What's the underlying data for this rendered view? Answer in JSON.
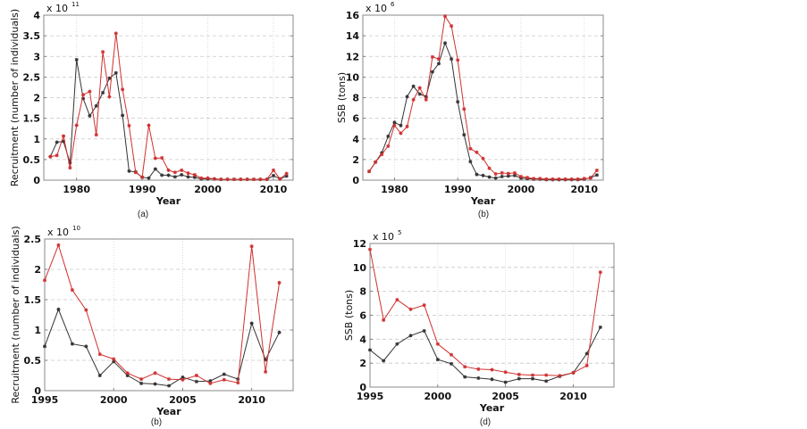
{
  "chart_data": [
    {
      "id": "a",
      "type": "line",
      "caption": "(a)",
      "xlabel": "Year",
      "ylabel": "Recruitment (number of individuals)",
      "multiplier": "x 10",
      "multiplier_exp": "11",
      "xlim": [
        1975,
        2013
      ],
      "ylim": [
        0,
        4
      ],
      "xticks": [
        1980,
        1990,
        2000,
        2010
      ],
      "xtick_labels": [
        "1980",
        "1990",
        "2000",
        "2010"
      ],
      "yticks": [
        0,
        0.5,
        1,
        1.5,
        2,
        2.5,
        3,
        3.5,
        4
      ],
      "ytick_labels": [
        "0",
        "0.5",
        "1",
        "1.5",
        "2",
        "2.5",
        "3",
        "3.5",
        "4"
      ],
      "grid": true,
      "x": [
        1976,
        1977,
        1978,
        1979,
        1980,
        1981,
        1982,
        1983,
        1984,
        1985,
        1986,
        1987,
        1988,
        1989,
        1990,
        1991,
        1992,
        1993,
        1994,
        1995,
        1996,
        1997,
        1998,
        1999,
        2000,
        2001,
        2002,
        2003,
        2004,
        2005,
        2006,
        2007,
        2008,
        2009,
        2010,
        2011,
        2012
      ],
      "series": [
        {
          "name": "black",
          "color": "#333333",
          "values": [
            0.57,
            0.92,
            0.94,
            0.42,
            2.92,
            1.98,
            1.56,
            1.8,
            2.12,
            2.47,
            2.6,
            1.57,
            0.22,
            0.2,
            0.07,
            0.05,
            0.27,
            0.12,
            0.12,
            0.08,
            0.13,
            0.08,
            0.07,
            0.03,
            0.03,
            0.03,
            0.02,
            0.02,
            0.02,
            0.02,
            0.02,
            0.02,
            0.02,
            0.02,
            0.11,
            0.03,
            0.1
          ]
        },
        {
          "name": "red",
          "color": "#d03030",
          "values": [
            0.57,
            0.6,
            1.07,
            0.3,
            1.33,
            2.07,
            2.15,
            1.1,
            3.11,
            2.02,
            3.56,
            2.2,
            1.32,
            0.19,
            0.07,
            1.33,
            0.53,
            0.54,
            0.24,
            0.19,
            0.24,
            0.17,
            0.13,
            0.05,
            0.05,
            0.03,
            0.02,
            0.02,
            0.02,
            0.02,
            0.02,
            0.02,
            0.02,
            0.02,
            0.24,
            0.03,
            0.16
          ]
        }
      ]
    },
    {
      "id": "b",
      "type": "line",
      "caption": "(b)",
      "xlabel": "Year",
      "ylabel": "SSB (tons)",
      "multiplier": "x 10",
      "multiplier_exp": "6",
      "xlim": [
        1975,
        2013
      ],
      "ylim": [
        0,
        16
      ],
      "xticks": [
        1980,
        1990,
        2000,
        2010
      ],
      "xtick_labels": [
        "1980",
        "1990",
        "2000",
        "2010"
      ],
      "yticks": [
        0,
        2,
        4,
        6,
        8,
        10,
        12,
        14,
        16
      ],
      "ytick_labels": [
        "0",
        "2",
        "4",
        "6",
        "8",
        "10",
        "12",
        "14",
        "16"
      ],
      "grid": true,
      "x": [
        1976,
        1977,
        1978,
        1979,
        1980,
        1981,
        1982,
        1983,
        1984,
        1985,
        1986,
        1987,
        1988,
        1989,
        1990,
        1991,
        1992,
        1993,
        1994,
        1995,
        1996,
        1997,
        1998,
        1999,
        2000,
        2001,
        2002,
        2003,
        2004,
        2005,
        2006,
        2007,
        2008,
        2009,
        2010,
        2011,
        2012
      ],
      "series": [
        {
          "name": "black",
          "color": "#333333",
          "values": [
            0.85,
            1.75,
            2.65,
            4.25,
            5.6,
            5.3,
            8.1,
            9.1,
            8.35,
            8.1,
            10.5,
            11.3,
            13.3,
            11.75,
            7.6,
            4.4,
            1.8,
            0.55,
            0.45,
            0.3,
            0.2,
            0.35,
            0.4,
            0.45,
            0.2,
            0.15,
            0.1,
            0.1,
            0.05,
            0.05,
            0.05,
            0.05,
            0.05,
            0.05,
            0.1,
            0.25,
            0.5
          ]
        },
        {
          "name": "red",
          "color": "#d03030",
          "values": [
            0.85,
            1.75,
            2.5,
            3.3,
            5.3,
            4.55,
            5.2,
            7.8,
            8.95,
            7.8,
            11.95,
            11.75,
            15.9,
            14.95,
            11.65,
            6.9,
            3.05,
            2.7,
            2.1,
            1.15,
            0.6,
            0.7,
            0.65,
            0.7,
            0.35,
            0.25,
            0.15,
            0.15,
            0.1,
            0.1,
            0.1,
            0.1,
            0.1,
            0.1,
            0.15,
            0.2,
            0.95
          ]
        }
      ]
    },
    {
      "id": "c",
      "type": "line",
      "caption": "(b)",
      "xlabel": "Year",
      "ylabel": "Recruitment (number of individuals)",
      "multiplier": "x 10",
      "multiplier_exp": "10",
      "xlim": [
        1995,
        2013
      ],
      "ylim": [
        0,
        2.5
      ],
      "xticks": [
        1995,
        2000,
        2005,
        2010
      ],
      "xtick_labels": [
        "1995",
        "2000",
        "2005",
        "2010"
      ],
      "yticks": [
        0,
        0.5,
        1,
        1.5,
        2,
        2.5
      ],
      "ytick_labels": [
        "0",
        "0.5",
        "1",
        "1.5",
        "2",
        "2.5"
      ],
      "grid": true,
      "x": [
        1995,
        1996,
        1997,
        1998,
        1999,
        2000,
        2001,
        2002,
        2003,
        2004,
        2005,
        2006,
        2007,
        2008,
        2009,
        2010,
        2011,
        2012
      ],
      "series": [
        {
          "name": "black",
          "color": "#333333",
          "values": [
            0.73,
            1.34,
            0.77,
            0.73,
            0.25,
            0.48,
            0.25,
            0.12,
            0.11,
            0.08,
            0.22,
            0.15,
            0.16,
            0.27,
            0.19,
            1.11,
            0.51,
            0.96
          ]
        },
        {
          "name": "red",
          "color": "#d03030",
          "values": [
            1.82,
            2.4,
            1.66,
            1.33,
            0.6,
            0.52,
            0.29,
            0.19,
            0.29,
            0.19,
            0.18,
            0.25,
            0.12,
            0.18,
            0.13,
            2.38,
            0.31,
            1.78
          ]
        }
      ]
    },
    {
      "id": "d",
      "type": "line",
      "caption": "(d)",
      "xlabel": "Year",
      "ylabel": "SSB (tons)",
      "multiplier": "x 10",
      "multiplier_exp": "5",
      "xlim": [
        1995,
        2013
      ],
      "ylim": [
        0,
        12
      ],
      "xticks": [
        1995,
        2000,
        2005,
        2010
      ],
      "xtick_labels": [
        "1995",
        "2000",
        "2005",
        "2010"
      ],
      "yticks": [
        0,
        2,
        4,
        6,
        8,
        10,
        12
      ],
      "ytick_labels": [
        "0",
        "2",
        "4",
        "6",
        "8",
        "10",
        "12"
      ],
      "grid": true,
      "x": [
        1995,
        1996,
        1997,
        1998,
        1999,
        2000,
        2001,
        2002,
        2003,
        2004,
        2005,
        2006,
        2007,
        2008,
        2009,
        2010,
        2011,
        2012
      ],
      "series": [
        {
          "name": "black",
          "color": "#333333",
          "values": [
            3.1,
            2.2,
            3.6,
            4.3,
            4.7,
            2.3,
            1.95,
            0.85,
            0.75,
            0.65,
            0.4,
            0.7,
            0.7,
            0.5,
            0.9,
            1.2,
            2.8,
            5.0
          ]
        },
        {
          "name": "red",
          "color": "#d03030",
          "values": [
            11.5,
            5.6,
            7.3,
            6.5,
            6.85,
            3.6,
            2.7,
            1.7,
            1.5,
            1.45,
            1.25,
            1.05,
            1.0,
            1.0,
            0.95,
            1.2,
            1.8,
            9.6
          ]
        }
      ]
    }
  ]
}
